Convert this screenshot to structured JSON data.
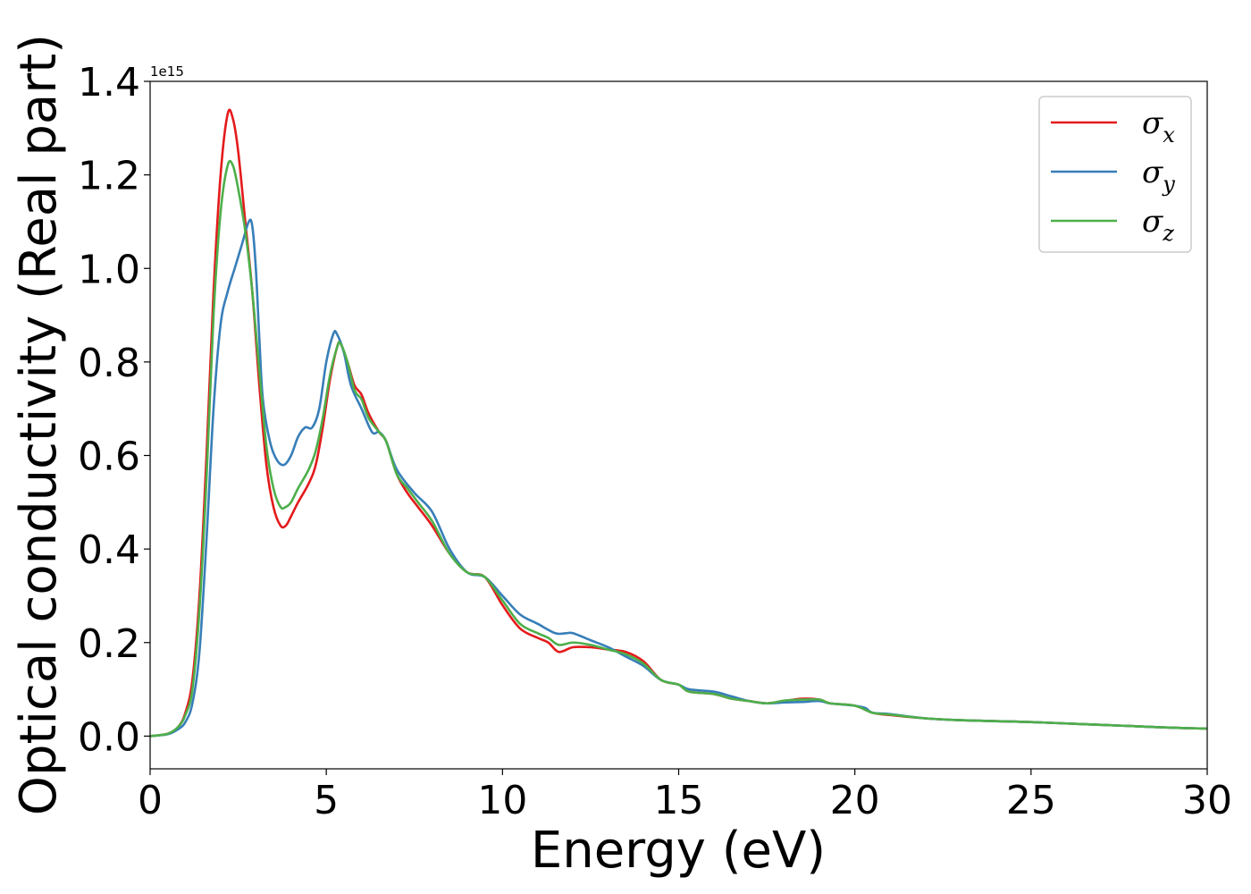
{
  "chart_data": {
    "type": "line",
    "title": "",
    "xlabel": "Energy (eV)",
    "ylabel": "Optical conductivity (Real part)",
    "y_offset_label": "1e15",
    "xlim": [
      0,
      30
    ],
    "ylim": [
      -0.07,
      1.4
    ],
    "xticks": [
      0,
      5,
      10,
      15,
      20,
      25,
      30
    ],
    "xtick_labels": [
      "0",
      "5",
      "10",
      "15",
      "20",
      "25",
      "30"
    ],
    "yticks": [
      0.0,
      0.2,
      0.4,
      0.6,
      0.8,
      1.0,
      1.2,
      1.4
    ],
    "ytick_labels": [
      "0.0",
      "0.2",
      "0.4",
      "0.6",
      "0.8",
      "1.0",
      "1.2",
      "1.4"
    ],
    "grid": false,
    "legend_position": "top-right",
    "series": [
      {
        "name": "σx",
        "base": "σ",
        "sub": "x",
        "color": "#e41a1c",
        "points": [
          [
            0,
            0
          ],
          [
            0.5,
            0.005
          ],
          [
            0.8,
            0.02
          ],
          [
            1.0,
            0.05
          ],
          [
            1.2,
            0.12
          ],
          [
            1.4,
            0.3
          ],
          [
            1.6,
            0.6
          ],
          [
            1.8,
            0.95
          ],
          [
            2.0,
            1.2
          ],
          [
            2.2,
            1.33
          ],
          [
            2.35,
            1.32
          ],
          [
            2.5,
            1.25
          ],
          [
            2.7,
            1.1
          ],
          [
            2.9,
            0.95
          ],
          [
            3.1,
            0.75
          ],
          [
            3.3,
            0.58
          ],
          [
            3.5,
            0.49
          ],
          [
            3.7,
            0.45
          ],
          [
            3.85,
            0.45
          ],
          [
            4.0,
            0.47
          ],
          [
            4.2,
            0.5
          ],
          [
            4.5,
            0.54
          ],
          [
            4.7,
            0.58
          ],
          [
            4.9,
            0.66
          ],
          [
            5.1,
            0.76
          ],
          [
            5.3,
            0.83
          ],
          [
            5.4,
            0.84
          ],
          [
            5.6,
            0.8
          ],
          [
            5.8,
            0.75
          ],
          [
            6.0,
            0.73
          ],
          [
            6.2,
            0.69
          ],
          [
            6.5,
            0.65
          ],
          [
            6.7,
            0.63
          ],
          [
            7.0,
            0.56
          ],
          [
            7.3,
            0.52
          ],
          [
            7.6,
            0.49
          ],
          [
            8.0,
            0.45
          ],
          [
            8.5,
            0.39
          ],
          [
            9.0,
            0.35
          ],
          [
            9.5,
            0.34
          ],
          [
            10.0,
            0.28
          ],
          [
            10.5,
            0.23
          ],
          [
            11.0,
            0.21
          ],
          [
            11.3,
            0.2
          ],
          [
            11.6,
            0.18
          ],
          [
            12.0,
            0.19
          ],
          [
            12.5,
            0.19
          ],
          [
            13.0,
            0.185
          ],
          [
            13.5,
            0.18
          ],
          [
            14.0,
            0.16
          ],
          [
            14.5,
            0.12
          ],
          [
            15.0,
            0.11
          ],
          [
            15.3,
            0.095
          ],
          [
            16.0,
            0.09
          ],
          [
            16.5,
            0.08
          ],
          [
            17.0,
            0.075
          ],
          [
            17.5,
            0.07
          ],
          [
            18.0,
            0.075
          ],
          [
            18.5,
            0.08
          ],
          [
            19.0,
            0.078
          ],
          [
            19.3,
            0.07
          ],
          [
            20.0,
            0.065
          ],
          [
            20.5,
            0.05
          ],
          [
            21.0,
            0.045
          ],
          [
            22.0,
            0.038
          ],
          [
            23.0,
            0.034
          ],
          [
            24.0,
            0.032
          ],
          [
            25.0,
            0.03
          ],
          [
            26.0,
            0.027
          ],
          [
            27.0,
            0.024
          ],
          [
            28.0,
            0.021
          ],
          [
            29.0,
            0.018
          ],
          [
            30.0,
            0.016
          ]
        ]
      },
      {
        "name": "σy",
        "base": "σ",
        "sub": "y",
        "color": "#377eb8",
        "points": [
          [
            0,
            0
          ],
          [
            0.5,
            0.004
          ],
          [
            0.8,
            0.015
          ],
          [
            1.0,
            0.03
          ],
          [
            1.2,
            0.07
          ],
          [
            1.4,
            0.18
          ],
          [
            1.6,
            0.42
          ],
          [
            1.8,
            0.7
          ],
          [
            2.0,
            0.88
          ],
          [
            2.2,
            0.95
          ],
          [
            2.4,
            1.0
          ],
          [
            2.6,
            1.05
          ],
          [
            2.8,
            1.1
          ],
          [
            2.9,
            1.09
          ],
          [
            3.0,
            1.0
          ],
          [
            3.1,
            0.85
          ],
          [
            3.2,
            0.72
          ],
          [
            3.4,
            0.63
          ],
          [
            3.6,
            0.59
          ],
          [
            3.8,
            0.58
          ],
          [
            4.0,
            0.6
          ],
          [
            4.2,
            0.64
          ],
          [
            4.4,
            0.66
          ],
          [
            4.6,
            0.66
          ],
          [
            4.8,
            0.7
          ],
          [
            5.0,
            0.8
          ],
          [
            5.2,
            0.86
          ],
          [
            5.3,
            0.86
          ],
          [
            5.5,
            0.82
          ],
          [
            5.7,
            0.75
          ],
          [
            6.0,
            0.7
          ],
          [
            6.3,
            0.65
          ],
          [
            6.5,
            0.65
          ],
          [
            6.7,
            0.63
          ],
          [
            7.0,
            0.57
          ],
          [
            7.5,
            0.52
          ],
          [
            8.0,
            0.48
          ],
          [
            8.5,
            0.4
          ],
          [
            9.0,
            0.35
          ],
          [
            9.5,
            0.34
          ],
          [
            10.0,
            0.3
          ],
          [
            10.5,
            0.26
          ],
          [
            11.0,
            0.24
          ],
          [
            11.5,
            0.22
          ],
          [
            11.8,
            0.22
          ],
          [
            12.0,
            0.22
          ],
          [
            12.5,
            0.205
          ],
          [
            13.0,
            0.19
          ],
          [
            13.5,
            0.17
          ],
          [
            14.0,
            0.15
          ],
          [
            14.5,
            0.12
          ],
          [
            15.0,
            0.11
          ],
          [
            15.3,
            0.1
          ],
          [
            16.0,
            0.095
          ],
          [
            16.5,
            0.085
          ],
          [
            17.0,
            0.075
          ],
          [
            17.5,
            0.07
          ],
          [
            18.0,
            0.072
          ],
          [
            18.5,
            0.073
          ],
          [
            19.0,
            0.075
          ],
          [
            19.3,
            0.07
          ],
          [
            20.0,
            0.065
          ],
          [
            20.3,
            0.06
          ],
          [
            20.5,
            0.05
          ],
          [
            21.0,
            0.047
          ],
          [
            22.0,
            0.038
          ],
          [
            23.0,
            0.034
          ],
          [
            24.0,
            0.032
          ],
          [
            25.0,
            0.03
          ],
          [
            26.0,
            0.027
          ],
          [
            27.0,
            0.024
          ],
          [
            28.0,
            0.021
          ],
          [
            29.0,
            0.018
          ],
          [
            30.0,
            0.016
          ]
        ]
      },
      {
        "name": "σz",
        "base": "σ",
        "sub": "z",
        "color": "#4daf4a",
        "points": [
          [
            0,
            0
          ],
          [
            0.5,
            0.005
          ],
          [
            0.8,
            0.02
          ],
          [
            1.0,
            0.045
          ],
          [
            1.2,
            0.1
          ],
          [
            1.4,
            0.27
          ],
          [
            1.6,
            0.55
          ],
          [
            1.8,
            0.9
          ],
          [
            2.0,
            1.12
          ],
          [
            2.2,
            1.22
          ],
          [
            2.35,
            1.22
          ],
          [
            2.5,
            1.17
          ],
          [
            2.7,
            1.08
          ],
          [
            2.9,
            0.95
          ],
          [
            3.1,
            0.78
          ],
          [
            3.3,
            0.62
          ],
          [
            3.5,
            0.53
          ],
          [
            3.7,
            0.49
          ],
          [
            3.85,
            0.49
          ],
          [
            4.0,
            0.5
          ],
          [
            4.2,
            0.53
          ],
          [
            4.5,
            0.57
          ],
          [
            4.7,
            0.61
          ],
          [
            4.9,
            0.68
          ],
          [
            5.1,
            0.77
          ],
          [
            5.3,
            0.83
          ],
          [
            5.4,
            0.84
          ],
          [
            5.6,
            0.8
          ],
          [
            5.8,
            0.74
          ],
          [
            6.0,
            0.72
          ],
          [
            6.2,
            0.68
          ],
          [
            6.5,
            0.65
          ],
          [
            6.7,
            0.63
          ],
          [
            7.0,
            0.56
          ],
          [
            7.3,
            0.53
          ],
          [
            7.6,
            0.5
          ],
          [
            8.0,
            0.46
          ],
          [
            8.5,
            0.39
          ],
          [
            9.0,
            0.35
          ],
          [
            9.5,
            0.34
          ],
          [
            10.0,
            0.29
          ],
          [
            10.5,
            0.24
          ],
          [
            11.0,
            0.22
          ],
          [
            11.3,
            0.21
          ],
          [
            11.6,
            0.195
          ],
          [
            12.0,
            0.2
          ],
          [
            12.5,
            0.195
          ],
          [
            13.0,
            0.185
          ],
          [
            13.5,
            0.175
          ],
          [
            14.0,
            0.155
          ],
          [
            14.5,
            0.12
          ],
          [
            15.0,
            0.11
          ],
          [
            15.3,
            0.095
          ],
          [
            16.0,
            0.09
          ],
          [
            16.5,
            0.08
          ],
          [
            17.0,
            0.075
          ],
          [
            17.5,
            0.07
          ],
          [
            18.0,
            0.076
          ],
          [
            18.5,
            0.078
          ],
          [
            19.0,
            0.078
          ],
          [
            19.3,
            0.07
          ],
          [
            20.0,
            0.065
          ],
          [
            20.5,
            0.05
          ],
          [
            21.0,
            0.046
          ],
          [
            22.0,
            0.038
          ],
          [
            23.0,
            0.034
          ],
          [
            24.0,
            0.032
          ],
          [
            25.0,
            0.03
          ],
          [
            26.0,
            0.027
          ],
          [
            27.0,
            0.024
          ],
          [
            28.0,
            0.021
          ],
          [
            29.0,
            0.018
          ],
          [
            30.0,
            0.016
          ]
        ]
      }
    ]
  }
}
